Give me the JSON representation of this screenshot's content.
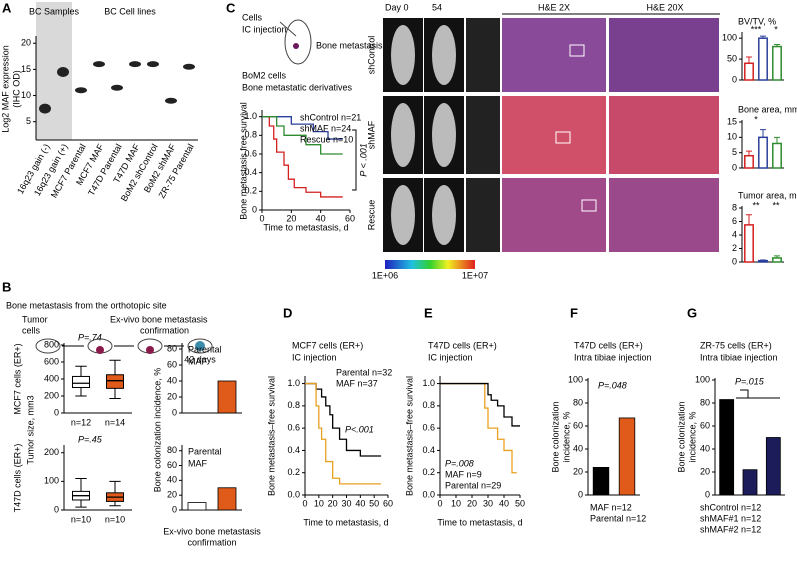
{
  "texts": {
    "panel_labels": [
      "A",
      "B",
      "C",
      "D",
      "E",
      "F",
      "G"
    ],
    "a_group1": "BC Samples",
    "a_group2": "BC Cell lines",
    "c_cells": "Cells",
    "c_ic": "IC injection",
    "c_bonemet": "Bone metastasis",
    "c_bom2": "BoM2 cells",
    "c_derivs": "Bone metastatic derivatives",
    "c_day0": "Day 0",
    "c_54": "54",
    "c_he2": "H&E 2X",
    "c_he20": "H&E 20X",
    "c_rows": [
      "shControl",
      "shMAF",
      "Rescue"
    ],
    "c_cbar": [
      "1E+06",
      "1E+07"
    ],
    "b_title": "Bone metastasis from the orthotopic site",
    "b_tumor": [
      "Tumor",
      "cells"
    ],
    "b_exvivo": [
      "Ex-vivo bone metastasis",
      "confirmation"
    ],
    "b_days": "42 days",
    "b_tumor_size": "Tumor size, mm3",
    "b_incidence": "Bone colonization incidence, %"
  },
  "chart_data": [
    {
      "type": "strip",
      "y_label": [
        "Log2 MAF expression",
        "(IHC OD)"
      ],
      "categories": [
        "16q23 gain (-)",
        "16q23 gain (+)",
        "MCF7 Parental",
        "MCF7 MAF",
        "T47D Parental",
        "T47D MAF",
        "BoM2 shControl",
        "BoM2 shMAF",
        "ZR-75 Parental"
      ],
      "label_colors": [
        "#2e8b2e",
        "#cc2222",
        "#2e8b2e",
        "#2e8b2e",
        "#2e8b2e",
        "#2e8b2e",
        "#cc2222",
        "#cc2222",
        "#cc2222"
      ],
      "values": [
        7.5,
        14.5,
        11,
        16,
        11.5,
        16,
        16,
        9,
        15.5
      ],
      "ylim": [
        1.5,
        21
      ],
      "yticks": [
        5,
        10,
        15,
        20
      ]
    },
    {
      "type": "survival",
      "x_label": "Time to metastasis, d",
      "y_label": "Bone metastasis free survival",
      "annotation": "P < .001",
      "xlim": [
        0,
        60
      ],
      "xticks": [
        0,
        20,
        40,
        60
      ],
      "ylim": [
        0,
        1.05
      ],
      "yticks": [
        0,
        0.2,
        0.4,
        0.6,
        0.8,
        {
          "value": 1,
          "label": "1.0"
        }
      ],
      "series": [
        {
          "name": "shControl n=21",
          "color": "#d42020",
          "x": [
            0,
            5,
            8,
            10,
            15,
            18,
            22,
            30,
            40,
            55
          ],
          "values": [
            1,
            0.9,
            0.76,
            0.62,
            0.48,
            0.33,
            0.24,
            0.19,
            0.14,
            0.14
          ]
        },
        {
          "name": "shMAF n=24",
          "color": "#2a3f9a",
          "x": [
            0,
            20,
            35,
            45,
            55
          ],
          "values": [
            1,
            0.92,
            0.84,
            0.76,
            0.76
          ]
        },
        {
          "name": "Rescue n=10",
          "color": "#2e8b2e",
          "x": [
            0,
            10,
            15,
            30,
            40,
            55
          ],
          "values": [
            1,
            0.9,
            0.8,
            0.7,
            0.6,
            0.6
          ]
        }
      ]
    },
    {
      "type": "bar",
      "bar_style": "outline",
      "y_label": "BV/TV, %",
      "values": [
        40,
        100,
        80
      ],
      "errors": [
        15,
        5,
        5
      ],
      "colors": [
        "#d42020",
        "#2a3f9a",
        "#2e8b2e"
      ],
      "annotations": [
        "***",
        "*"
      ],
      "ylim": [
        0,
        110
      ],
      "yticks": [
        0,
        50,
        100
      ]
    },
    {
      "type": "bar",
      "bar_style": "outline",
      "y_label": "Bone area, mm2",
      "values": [
        4,
        10,
        8
      ],
      "errors": [
        1.5,
        2.5,
        2
      ],
      "colors": [
        "#d42020",
        "#2a3f9a",
        "#2e8b2e"
      ],
      "annotations": [
        "*"
      ],
      "ylim": [
        0,
        15
      ],
      "yticks": [
        0,
        5,
        10,
        15
      ]
    },
    {
      "type": "bar",
      "bar_style": "outline",
      "y_label": "Tumor area, mm2",
      "values": [
        5.5,
        0.2,
        0.6
      ],
      "errors": [
        1.5,
        0.1,
        0.3
      ],
      "colors": [
        "#d42020",
        "#2a3f9a",
        "#2e8b2e"
      ],
      "annotations": [
        "**",
        "**"
      ],
      "ylim": [
        0,
        8
      ],
      "yticks": [
        0,
        2,
        4,
        6,
        8
      ]
    },
    {
      "type": "box",
      "y_label": [
        "MCF7 cells (ER+)"
      ],
      "annotation": "P=.74",
      "categories": [
        "n=12",
        "n=14"
      ],
      "colors": [
        "#000000",
        "#e05a1a"
      ],
      "box_fill": [
        "#ffffff",
        "#e05a1a"
      ],
      "boxes": [
        {
          "min": 200,
          "q1": 300,
          "median": 350,
          "q3": 430,
          "max": 550
        },
        {
          "min": 170,
          "q1": 290,
          "median": 380,
          "q3": 450,
          "max": 620
        }
      ],
      "ylim": [
        0,
        800
      ],
      "yticks": [
        0,
        200,
        400,
        600,
        800
      ]
    },
    {
      "type": "box",
      "y_label": [
        "T47D cells (ER+)"
      ],
      "annotation": "P=.45",
      "categories": [
        "n=10",
        "n=10"
      ],
      "colors": [
        "#000000",
        "#e05a1a"
      ],
      "box_fill": [
        "#ffffff",
        "#e05a1a"
      ],
      "boxes": [
        {
          "min": 10,
          "q1": 35,
          "median": 50,
          "q3": 65,
          "max": 110
        },
        {
          "min": 15,
          "q1": 30,
          "median": 45,
          "q3": 60,
          "max": 100
        }
      ],
      "ylim": [
        0,
        220
      ],
      "yticks": [
        0,
        100,
        200
      ]
    },
    {
      "type": "bar",
      "bar_style": "filled",
      "categories": [
        "Parental",
        "MAF"
      ],
      "label_colors": [
        "#000000",
        "#e05a1a"
      ],
      "colors": [
        "#ffffff",
        "#e05a1a"
      ],
      "values": [
        0,
        40
      ],
      "ylim": [
        0,
        85
      ],
      "yticks": [
        0,
        20,
        40,
        60,
        80
      ]
    },
    {
      "type": "bar",
      "bar_style": "filled",
      "categories": [
        "Parental",
        "MAF"
      ],
      "label_colors": [
        "#000000",
        "#e05a1a"
      ],
      "colors": [
        "#ffffff",
        "#e05a1a"
      ],
      "values": [
        10,
        30
      ],
      "x_label": [
        "Ex-vivo bone metastasis",
        "confirmation"
      ],
      "ylim": [
        0,
        85
      ],
      "yticks": [
        0,
        20,
        40,
        60,
        80
      ]
    },
    {
      "type": "survival",
      "title": "MCF7 cells (ER+)",
      "subtitle": "IC injection",
      "x_label": "Time to metastasis, d",
      "y_label": "Bone metastasis–free survival",
      "annotation": "P<.001",
      "xlim": [
        0,
        60
      ],
      "xticks": [
        0,
        10,
        20,
        30,
        40,
        50,
        60
      ],
      "ylim": [
        0,
        1.05
      ],
      "yticks": [
        {
          "value": 0,
          "label": "0.0"
        },
        0.2,
        0.4,
        0.6,
        0.8,
        {
          "value": 1,
          "label": "1.0"
        }
      ],
      "series": [
        {
          "name": "Parental n=32",
          "color": "#000000",
          "x": [
            0,
            8,
            12,
            15,
            18,
            20,
            25,
            30,
            40,
            55
          ],
          "values": [
            1,
            0.95,
            0.88,
            0.8,
            0.72,
            0.6,
            0.5,
            0.4,
            0.35,
            0.35
          ]
        },
        {
          "name": "MAF n=37",
          "color": "#e8a020",
          "x": [
            0,
            8,
            10,
            12,
            15,
            20,
            25,
            55
          ],
          "values": [
            1,
            0.8,
            0.6,
            0.5,
            0.3,
            0.15,
            0.1,
            0.1
          ]
        }
      ]
    },
    {
      "type": "survival",
      "title": "T47D cells (ER+)",
      "subtitle": "IC injection",
      "x_label": "Time to metastasis, d",
      "y_label": "Bone metastasis–free survival",
      "annotation": "P=.008",
      "xlim": [
        0,
        50
      ],
      "xticks": [
        0,
        10,
        20,
        30,
        40,
        50
      ],
      "ylim": [
        0,
        1.05
      ],
      "yticks": [
        {
          "value": 0,
          "label": "0.0"
        },
        0.2,
        0.4,
        0.6,
        0.8,
        {
          "value": 1,
          "label": "1.0"
        }
      ],
      "series": [
        {
          "name": "MAF n=9",
          "color": "#e8a020",
          "x": [
            0,
            28,
            30,
            36,
            40,
            45,
            48
          ],
          "values": [
            1,
            0.78,
            0.6,
            0.5,
            0.4,
            0.2,
            0.2
          ]
        },
        {
          "name": "Parental n=29",
          "color": "#000000",
          "x": [
            0,
            30,
            32,
            36,
            40,
            45,
            50
          ],
          "values": [
            1,
            0.9,
            0.85,
            0.8,
            0.7,
            0.62,
            0.62
          ]
        }
      ]
    },
    {
      "type": "bar",
      "bar_style": "filled",
      "title": "T47D cells (ER+)",
      "subtitle": "Intra tibiae injection",
      "y_label": [
        "Bone colonization",
        "incidence, %"
      ],
      "annotation": "P=.048",
      "categories": [
        "Parental n=12",
        "MAF n=12"
      ],
      "label_colors": [
        "#000000",
        "#e05a1a"
      ],
      "colors": [
        "#000000",
        "#e05a1a"
      ],
      "values": [
        24,
        67
      ],
      "ylim": [
        0,
        100
      ],
      "yticks": [
        0,
        20,
        40,
        60,
        80,
        100
      ]
    },
    {
      "type": "bar",
      "bar_style": "filled",
      "title": "ZR-75 cells (ER+)",
      "subtitle": "Intra tibiae injection",
      "y_label": [
        "Bone colonization",
        "incidence, %"
      ],
      "annotation": "P=.015",
      "categories": [
        "shControl n=12",
        "shMAF#1 n=12",
        "shMAF#2 n=12"
      ],
      "label_colors": [
        "#000000",
        "#1c1c5a",
        "#1c1c5a"
      ],
      "colors": [
        "#000000",
        "#1c1c5a",
        "#1c1c5a"
      ],
      "values": [
        83,
        22,
        50
      ],
      "ylim": [
        0,
        100
      ],
      "yticks": [
        0,
        20,
        40,
        60,
        80,
        100
      ]
    }
  ]
}
